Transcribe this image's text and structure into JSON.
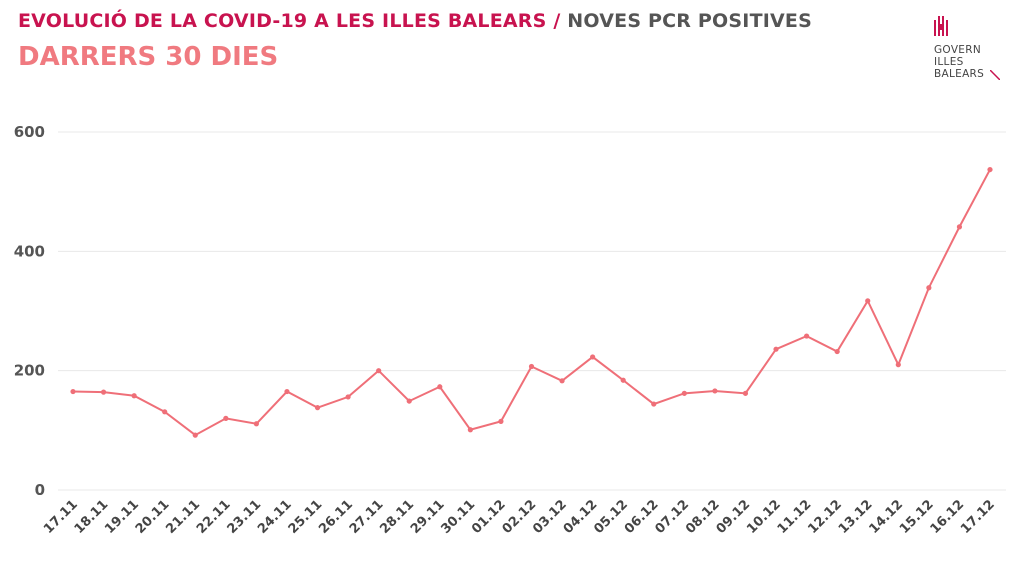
{
  "header": {
    "title_main": "EVOLUCIÓ DE LA COVID-19 A LES ILLES BALEARS",
    "title_sep": " / ",
    "title_sub": "NOVES PCR POSITIVES",
    "subtitle": "DARRERS 30 DIES"
  },
  "logo": {
    "text": "GOVERN\nILLES\nBALEARS",
    "icon": "govern-illes-balears-logo-icon",
    "color": "#c8134f"
  },
  "colors": {
    "line": "#ef6f78",
    "grid": "#e8e8e8"
  },
  "chart_data": {
    "type": "line",
    "title": "EVOLUCIÓ DE LA COVID-19 A LES ILLES BALEARS / NOVES PCR POSITIVES",
    "subtitle": "DARRERS 30 DIES",
    "xlabel": "",
    "ylabel": "",
    "ylim": [
      0,
      600
    ],
    "yticks": [
      0,
      200,
      400,
      600
    ],
    "grid": true,
    "categories": [
      "17.11",
      "18.11",
      "19.11",
      "20.11",
      "21.11",
      "22.11",
      "23.11",
      "24.11",
      "25.11",
      "26.11",
      "27.11",
      "28.11",
      "29.11",
      "30.11",
      "01.12",
      "02.12",
      "03.12",
      "04.12",
      "05.12",
      "06.12",
      "07.12",
      "08.12",
      "09.12",
      "10.12",
      "11.12",
      "12.12",
      "13.12",
      "14.12",
      "15.12",
      "16.12",
      "17.12"
    ],
    "series": [
      {
        "values": [
          165,
          164,
          158,
          131,
          92,
          120,
          111,
          165,
          138,
          156,
          200,
          149,
          173,
          101,
          115,
          207,
          183,
          223,
          184,
          144,
          162,
          166,
          162,
          236,
          258,
          232,
          317,
          210,
          339,
          441,
          537
        ]
      }
    ]
  }
}
